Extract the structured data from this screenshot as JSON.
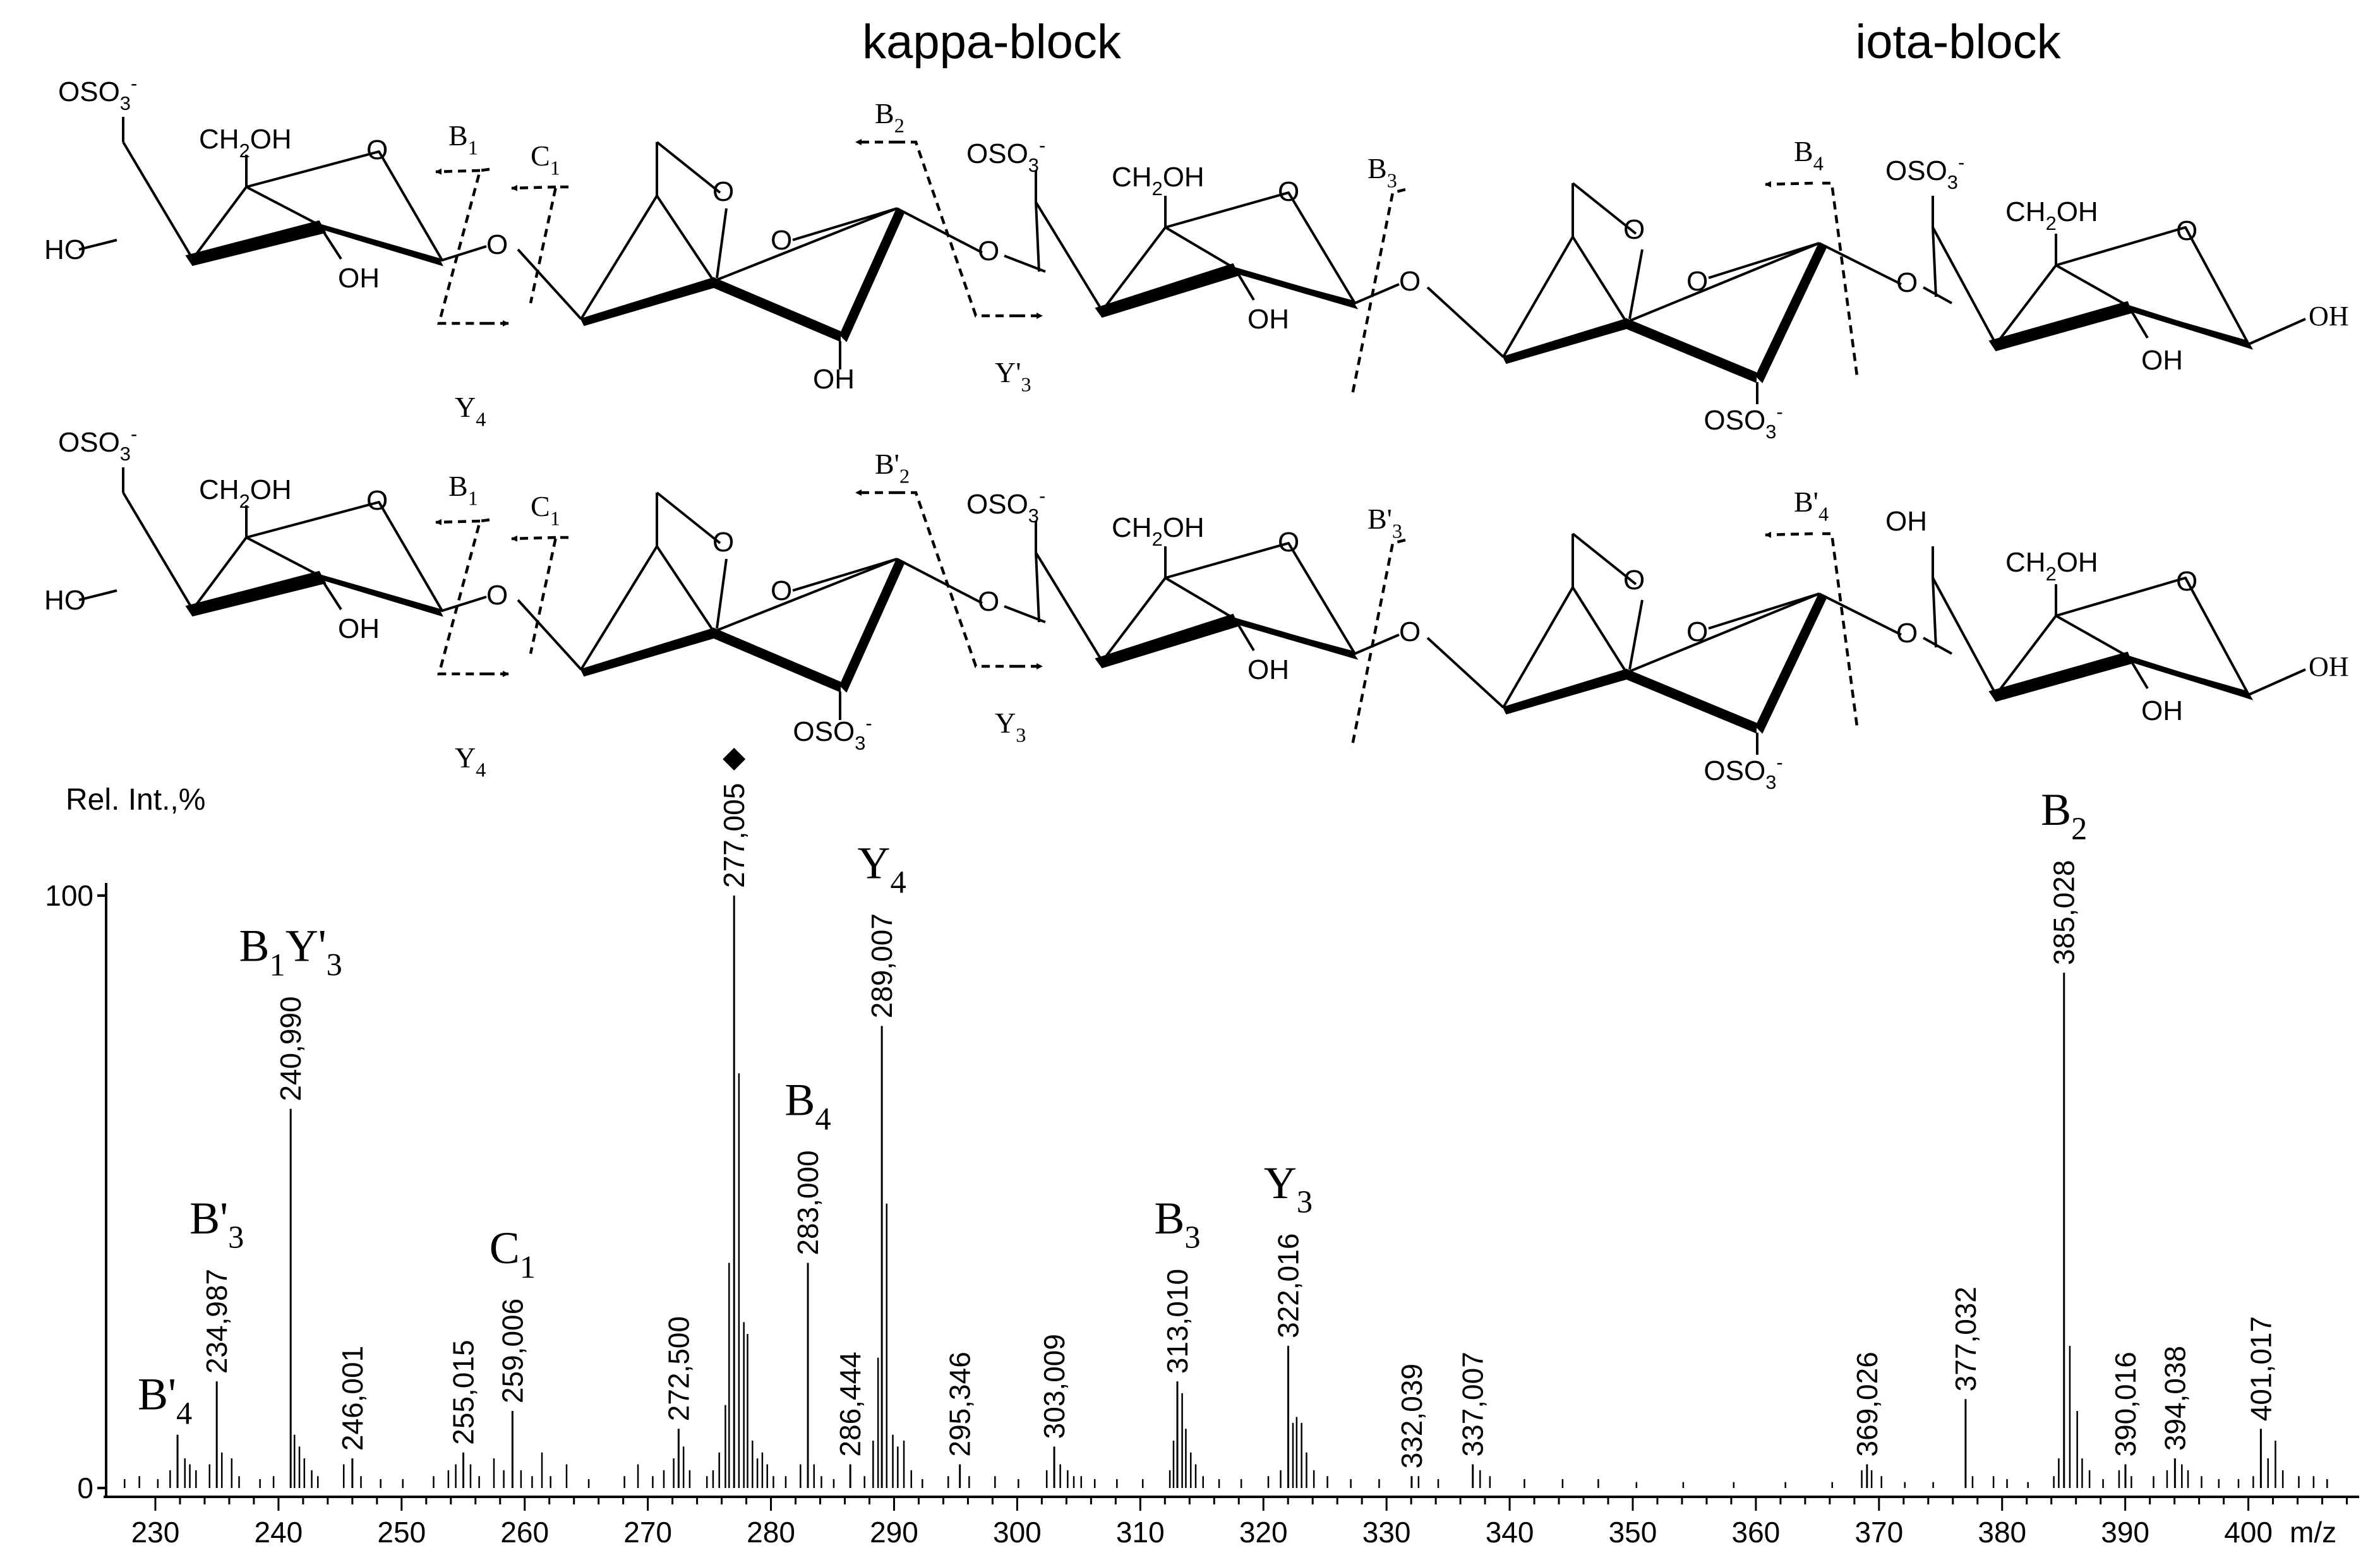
{
  "figure": {
    "block_titles": [
      "kappa-block",
      "iota-block"
    ],
    "structures": [
      {
        "row": "top",
        "ring_labels": [
          "OSO3-",
          "CH2OH",
          "O",
          "HO",
          "OH",
          "O",
          "O",
          "O",
          "OH",
          "O",
          "OSO3-",
          "CH2OH",
          "O",
          "OH",
          "O",
          "O",
          "O",
          "OSO3-",
          "O",
          "OSO3-",
          "CH2OH",
          "O",
          "OH",
          "OH"
        ],
        "fragment_labels": [
          "B1",
          "C1",
          "Y4",
          "B2",
          "Y'3",
          "B3",
          "B4"
        ]
      },
      {
        "row": "bottom",
        "ring_labels": [
          "OSO3-",
          "CH2OH",
          "O",
          "HO",
          "OH",
          "O",
          "O",
          "O",
          "OSO3-",
          "O",
          "OSO3-",
          "CH2OH",
          "O",
          "OH",
          "O",
          "O",
          "O",
          "OSO3-",
          "O",
          "OH",
          "CH2OH",
          "O",
          "OH",
          "OH"
        ],
        "fragment_labels": [
          "B1",
          "C1",
          "Y4",
          "B'2",
          "Y3",
          "B'3",
          "B'4"
        ]
      }
    ]
  },
  "chart_data": {
    "type": "bar",
    "title": "",
    "xlabel": "m/z",
    "ylabel": "Rel. Int.,%",
    "xlim": [
      226,
      409
    ],
    "ylim": [
      0,
      100
    ],
    "xticks": [
      230,
      240,
      250,
      260,
      270,
      280,
      290,
      300,
      310,
      320,
      330,
      340,
      350,
      360,
      370,
      380,
      390,
      400
    ],
    "yticks": [
      0,
      100
    ],
    "labeled_peaks": [
      {
        "mz": 231.8,
        "intensity": 9,
        "label": "",
        "ion": "B'4"
      },
      {
        "mz": 234.987,
        "intensity": 18,
        "label": "234,987",
        "ion": "B'3"
      },
      {
        "mz": 240.99,
        "intensity": 64,
        "label": "240,990",
        "ion": "B1Y'3"
      },
      {
        "mz": 246.001,
        "intensity": 5,
        "label": "246,001",
        "ion": ""
      },
      {
        "mz": 255.015,
        "intensity": 6,
        "label": "255,015",
        "ion": ""
      },
      {
        "mz": 259.006,
        "intensity": 13,
        "label": "259,006",
        "ion": "C1"
      },
      {
        "mz": 272.5,
        "intensity": 10,
        "label": "272,500",
        "ion": ""
      },
      {
        "mz": 277.005,
        "intensity": 100,
        "label": "277,005",
        "ion": "◆"
      },
      {
        "mz": 283.0,
        "intensity": 38,
        "label": "283,000",
        "ion": "B4"
      },
      {
        "mz": 286.444,
        "intensity": 4,
        "label": "286,444",
        "ion": ""
      },
      {
        "mz": 289.007,
        "intensity": 78,
        "label": "289,007",
        "ion": "Y4"
      },
      {
        "mz": 295.346,
        "intensity": 4,
        "label": "295,346",
        "ion": ""
      },
      {
        "mz": 303.009,
        "intensity": 7,
        "label": "303,009",
        "ion": ""
      },
      {
        "mz": 313.01,
        "intensity": 18,
        "label": "313,010",
        "ion": "B3"
      },
      {
        "mz": 322.016,
        "intensity": 24,
        "label": "322,016",
        "ion": "Y3"
      },
      {
        "mz": 332.039,
        "intensity": 2,
        "label": "332,039",
        "ion": ""
      },
      {
        "mz": 337.007,
        "intensity": 4,
        "label": "337,007",
        "ion": ""
      },
      {
        "mz": 369.026,
        "intensity": 4,
        "label": "369,026",
        "ion": ""
      },
      {
        "mz": 377.032,
        "intensity": 15,
        "label": "377,032",
        "ion": ""
      },
      {
        "mz": 385.028,
        "intensity": 87,
        "label": "385,028",
        "ion": "B2"
      },
      {
        "mz": 390.016,
        "intensity": 4,
        "label": "390,016",
        "ion": ""
      },
      {
        "mz": 394.038,
        "intensity": 5,
        "label": "394,038",
        "ion": ""
      },
      {
        "mz": 401.017,
        "intensity": 10,
        "label": "401,017",
        "ion": ""
      }
    ],
    "minor_peaks": [
      {
        "mz": 227.5,
        "intensity": 1.5
      },
      {
        "mz": 228.7,
        "intensity": 2
      },
      {
        "mz": 230.2,
        "intensity": 1.5
      },
      {
        "mz": 231.2,
        "intensity": 3
      },
      {
        "mz": 232.4,
        "intensity": 5
      },
      {
        "mz": 232.8,
        "intensity": 4
      },
      {
        "mz": 233.3,
        "intensity": 3
      },
      {
        "mz": 234.4,
        "intensity": 4
      },
      {
        "mz": 235.4,
        "intensity": 6
      },
      {
        "mz": 236.2,
        "intensity": 5
      },
      {
        "mz": 236.8,
        "intensity": 2
      },
      {
        "mz": 238.5,
        "intensity": 1.5
      },
      {
        "mz": 239.6,
        "intensity": 2
      },
      {
        "mz": 241.3,
        "intensity": 9
      },
      {
        "mz": 241.7,
        "intensity": 7
      },
      {
        "mz": 242.1,
        "intensity": 5
      },
      {
        "mz": 242.7,
        "intensity": 3
      },
      {
        "mz": 243.2,
        "intensity": 2
      },
      {
        "mz": 245.3,
        "intensity": 4
      },
      {
        "mz": 246.7,
        "intensity": 2
      },
      {
        "mz": 248.3,
        "intensity": 1.5
      },
      {
        "mz": 250.1,
        "intensity": 1.5
      },
      {
        "mz": 252.6,
        "intensity": 2
      },
      {
        "mz": 253.8,
        "intensity": 3
      },
      {
        "mz": 254.4,
        "intensity": 4
      },
      {
        "mz": 255.6,
        "intensity": 4
      },
      {
        "mz": 256.3,
        "intensity": 2
      },
      {
        "mz": 257.5,
        "intensity": 5
      },
      {
        "mz": 258.3,
        "intensity": 3
      },
      {
        "mz": 259.7,
        "intensity": 3
      },
      {
        "mz": 260.6,
        "intensity": 2
      },
      {
        "mz": 261.4,
        "intensity": 6
      },
      {
        "mz": 262.1,
        "intensity": 2
      },
      {
        "mz": 263.4,
        "intensity": 4
      },
      {
        "mz": 265.2,
        "intensity": 1.5
      },
      {
        "mz": 268.1,
        "intensity": 2
      },
      {
        "mz": 269.2,
        "intensity": 4
      },
      {
        "mz": 270.4,
        "intensity": 2
      },
      {
        "mz": 271.3,
        "intensity": 3
      },
      {
        "mz": 272.1,
        "intensity": 5
      },
      {
        "mz": 272.9,
        "intensity": 7
      },
      {
        "mz": 273.4,
        "intensity": 3
      },
      {
        "mz": 274.8,
        "intensity": 2
      },
      {
        "mz": 275.3,
        "intensity": 3
      },
      {
        "mz": 275.8,
        "intensity": 6
      },
      {
        "mz": 276.3,
        "intensity": 14
      },
      {
        "mz": 276.6,
        "intensity": 38
      },
      {
        "mz": 277.4,
        "intensity": 70
      },
      {
        "mz": 277.8,
        "intensity": 28
      },
      {
        "mz": 278.1,
        "intensity": 26
      },
      {
        "mz": 278.5,
        "intensity": 8
      },
      {
        "mz": 278.9,
        "intensity": 5
      },
      {
        "mz": 279.3,
        "intensity": 6
      },
      {
        "mz": 279.7,
        "intensity": 4
      },
      {
        "mz": 280.2,
        "intensity": 2
      },
      {
        "mz": 281.2,
        "intensity": 2
      },
      {
        "mz": 282.4,
        "intensity": 4
      },
      {
        "mz": 283.5,
        "intensity": 4
      },
      {
        "mz": 284.1,
        "intensity": 2
      },
      {
        "mz": 285.1,
        "intensity": 1.5
      },
      {
        "mz": 287.6,
        "intensity": 2
      },
      {
        "mz": 288.3,
        "intensity": 8
      },
      {
        "mz": 288.7,
        "intensity": 22
      },
      {
        "mz": 289.4,
        "intensity": 48
      },
      {
        "mz": 289.9,
        "intensity": 9
      },
      {
        "mz": 290.3,
        "intensity": 7
      },
      {
        "mz": 290.8,
        "intensity": 8
      },
      {
        "mz": 291.4,
        "intensity": 3
      },
      {
        "mz": 292.3,
        "intensity": 1.5
      },
      {
        "mz": 294.4,
        "intensity": 2
      },
      {
        "mz": 296.1,
        "intensity": 2
      },
      {
        "mz": 298.2,
        "intensity": 2
      },
      {
        "mz": 300.1,
        "intensity": 1.5
      },
      {
        "mz": 302.4,
        "intensity": 3
      },
      {
        "mz": 303.5,
        "intensity": 4
      },
      {
        "mz": 304.1,
        "intensity": 3
      },
      {
        "mz": 304.6,
        "intensity": 2
      },
      {
        "mz": 305.2,
        "intensity": 2
      },
      {
        "mz": 306.3,
        "intensity": 1.5
      },
      {
        "mz": 308.1,
        "intensity": 1.5
      },
      {
        "mz": 310.2,
        "intensity": 1.5
      },
      {
        "mz": 312.4,
        "intensity": 3
      },
      {
        "mz": 312.7,
        "intensity": 8
      },
      {
        "mz": 313.4,
        "intensity": 16
      },
      {
        "mz": 313.7,
        "intensity": 10
      },
      {
        "mz": 314.1,
        "intensity": 6
      },
      {
        "mz": 314.5,
        "intensity": 4
      },
      {
        "mz": 315.1,
        "intensity": 2
      },
      {
        "mz": 316.4,
        "intensity": 1.5
      },
      {
        "mz": 318.2,
        "intensity": 1.5
      },
      {
        "mz": 320.4,
        "intensity": 2
      },
      {
        "mz": 321.4,
        "intensity": 3
      },
      {
        "mz": 322.4,
        "intensity": 11
      },
      {
        "mz": 322.7,
        "intensity": 12
      },
      {
        "mz": 323.1,
        "intensity": 11
      },
      {
        "mz": 323.5,
        "intensity": 6
      },
      {
        "mz": 324.1,
        "intensity": 3
      },
      {
        "mz": 325.2,
        "intensity": 2
      },
      {
        "mz": 327.1,
        "intensity": 1.5
      },
      {
        "mz": 329.4,
        "intensity": 1.5
      },
      {
        "mz": 332.6,
        "intensity": 2
      },
      {
        "mz": 334.2,
        "intensity": 1.5
      },
      {
        "mz": 337.6,
        "intensity": 3
      },
      {
        "mz": 338.4,
        "intensity": 2
      },
      {
        "mz": 341.2,
        "intensity": 1.5
      },
      {
        "mz": 344.3,
        "intensity": 1.5
      },
      {
        "mz": 347.2,
        "intensity": 1.5
      },
      {
        "mz": 350.3,
        "intensity": 1
      },
      {
        "mz": 354.1,
        "intensity": 1
      },
      {
        "mz": 358.2,
        "intensity": 1
      },
      {
        "mz": 362.4,
        "intensity": 1
      },
      {
        "mz": 366.2,
        "intensity": 1
      },
      {
        "mz": 368.6,
        "intensity": 3
      },
      {
        "mz": 369.4,
        "intensity": 3
      },
      {
        "mz": 370.2,
        "intensity": 2
      },
      {
        "mz": 372.1,
        "intensity": 1
      },
      {
        "mz": 374.4,
        "intensity": 1
      },
      {
        "mz": 377.6,
        "intensity": 2
      },
      {
        "mz": 379.3,
        "intensity": 2
      },
      {
        "mz": 380.4,
        "intensity": 1.5
      },
      {
        "mz": 382.1,
        "intensity": 1
      },
      {
        "mz": 384.2,
        "intensity": 2
      },
      {
        "mz": 384.6,
        "intensity": 5
      },
      {
        "mz": 385.5,
        "intensity": 24
      },
      {
        "mz": 386.1,
        "intensity": 13
      },
      {
        "mz": 386.5,
        "intensity": 5
      },
      {
        "mz": 387.1,
        "intensity": 3
      },
      {
        "mz": 388.2,
        "intensity": 1.5
      },
      {
        "mz": 389.5,
        "intensity": 3
      },
      {
        "mz": 390.5,
        "intensity": 2
      },
      {
        "mz": 392.3,
        "intensity": 2
      },
      {
        "mz": 393.4,
        "intensity": 3
      },
      {
        "mz": 394.6,
        "intensity": 4
      },
      {
        "mz": 395.1,
        "intensity": 3
      },
      {
        "mz": 396.2,
        "intensity": 2
      },
      {
        "mz": 397.6,
        "intensity": 1.5
      },
      {
        "mz": 399.2,
        "intensity": 1.5
      },
      {
        "mz": 400.4,
        "intensity": 2
      },
      {
        "mz": 401.6,
        "intensity": 5
      },
      {
        "mz": 402.2,
        "intensity": 8
      },
      {
        "mz": 402.8,
        "intensity": 3
      },
      {
        "mz": 404.1,
        "intensity": 2
      },
      {
        "mz": 405.3,
        "intensity": 2
      },
      {
        "mz": 406.4,
        "intensity": 1.5
      }
    ]
  }
}
